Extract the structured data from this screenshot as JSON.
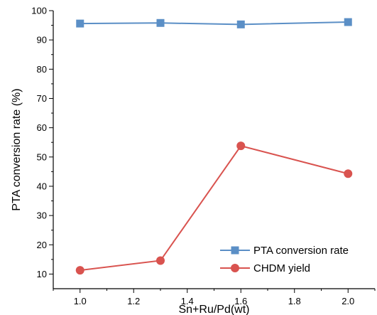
{
  "chart_data": {
    "type": "line",
    "xlabel": "Sn+Ru/Pd(wt)",
    "ylabel": "PTA conversion rate (%)",
    "xlim": [
      0.9,
      2.1
    ],
    "ylim": [
      5,
      100
    ],
    "xticks": [
      1.0,
      1.2,
      1.4,
      1.6,
      1.8,
      2.0
    ],
    "xtick_labels": [
      "1.0",
      "1.2",
      "1.4",
      "1.6",
      "1.8",
      "2.0"
    ],
    "yticks": [
      10,
      20,
      30,
      40,
      50,
      60,
      70,
      80,
      90,
      100
    ],
    "ytick_labels": [
      "10",
      "20",
      "30",
      "40",
      "50",
      "60",
      "70",
      "80",
      "90",
      "100"
    ],
    "x": [
      1.0,
      1.3,
      1.6,
      2.0
    ],
    "series": [
      {
        "name": "PTA conversion rate",
        "values": [
          95.6,
          95.8,
          95.3,
          96.1
        ],
        "color": "#5b8fc6",
        "marker": "square"
      },
      {
        "name": "CHDM yield",
        "values": [
          11.3,
          14.6,
          53.8,
          44.3
        ],
        "color": "#d9534f",
        "marker": "circle"
      }
    ],
    "legend_position": "bottom-right",
    "grid": false
  }
}
